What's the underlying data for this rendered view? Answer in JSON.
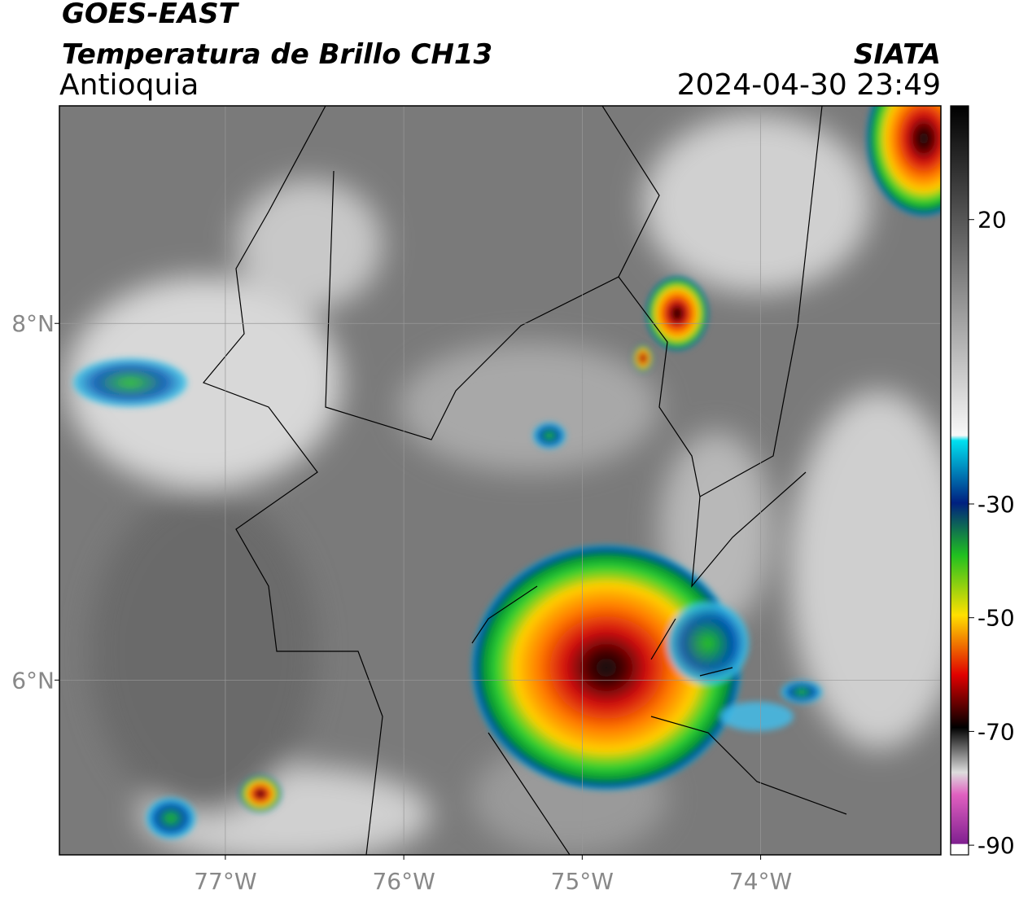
{
  "header": {
    "line1": "GOES-EAST",
    "line2": "Temperatura de Brillo CH13",
    "region": "Antioquia",
    "agency": "SIATA",
    "datetime": "2024-04-30 23:49"
  },
  "map": {
    "xlim": [
      -77.93,
      -72.99
    ],
    "ylim": [
      5.02,
      9.22
    ],
    "xticks": [
      {
        "value": -77,
        "label": "77°W"
      },
      {
        "value": -76,
        "label": "76°W"
      },
      {
        "value": -75,
        "label": "75°W"
      },
      {
        "value": -74,
        "label": "74°W"
      }
    ],
    "yticks": [
      {
        "value": 8,
        "label": "8°N"
      },
      {
        "value": 6,
        "label": "6°N"
      }
    ]
  },
  "colorbar": {
    "lim": [
      -91.7,
      40
    ],
    "ticks": [
      20,
      -30,
      -50,
      -70,
      -90
    ]
  }
}
